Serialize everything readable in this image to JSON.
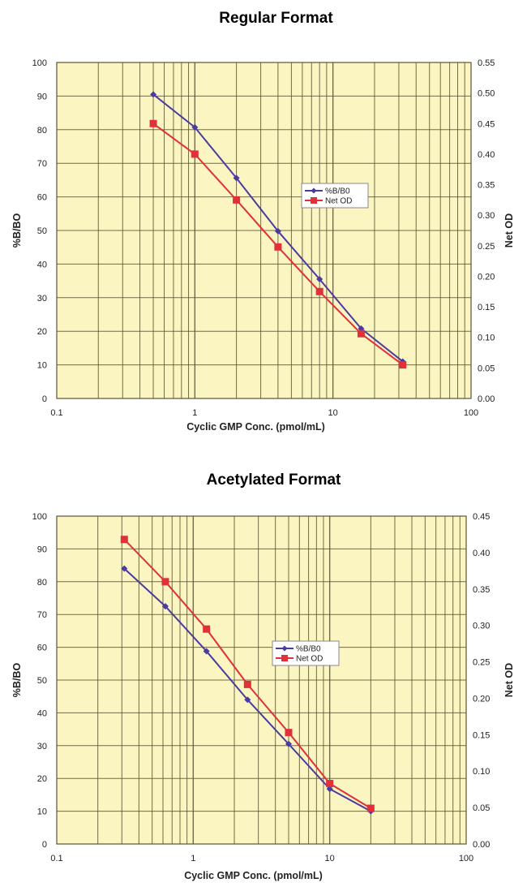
{
  "colors": {
    "plot_bg": "#fbf5c2",
    "grid": "#5a5530",
    "series_b": "#4b3aa0",
    "series_od": "#e0303a"
  },
  "chart_data": [
    {
      "type": "line",
      "title": "Regular Format",
      "xlabel": "Cyclic GMP Conc. (pmol/mL)",
      "ylabel": "%B/BO",
      "y2label": "Net OD",
      "xscale": "log",
      "xlim": [
        0.1,
        100
      ],
      "ylim": [
        0,
        100
      ],
      "y2lim": [
        0,
        0.55
      ],
      "xticks": [
        "0.1",
        "1",
        "10",
        "100"
      ],
      "yticks": [
        "0",
        "10",
        "20",
        "30",
        "40",
        "50",
        "60",
        "70",
        "80",
        "90",
        "100"
      ],
      "y2ticks": [
        "0.00",
        "0.05",
        "0.10",
        "0.15",
        "0.20",
        "0.25",
        "0.30",
        "0.35",
        "0.40",
        "0.45",
        "0.50",
        "0.55"
      ],
      "grid": true,
      "legend": "center-right",
      "x": [
        0.5,
        1,
        2,
        4,
        8,
        16,
        32
      ],
      "series": [
        {
          "name": "%B/B0",
          "axis": "left",
          "marker": "diamond",
          "values": [
            90.5,
            80.7,
            65.6,
            49.8,
            35.5,
            20.8,
            11.0
          ]
        },
        {
          "name": "Net OD",
          "axis": "right",
          "marker": "square",
          "values": [
            0.45,
            0.4,
            0.325,
            0.248,
            0.175,
            0.106,
            0.055
          ]
        }
      ]
    },
    {
      "type": "line",
      "title": "Acetylated Format",
      "xlabel": "Cyclic GMP Conc. (pmol/mL)",
      "ylabel": "%B/BO",
      "y2label": "Net OD",
      "xscale": "log",
      "xlim": [
        0.1,
        100
      ],
      "ylim": [
        0,
        100
      ],
      "y2lim": [
        0,
        0.45
      ],
      "xticks": [
        "0.1",
        "1",
        "10",
        "100"
      ],
      "yticks": [
        "0",
        "10",
        "20",
        "30",
        "40",
        "50",
        "60",
        "70",
        "80",
        "90",
        "100"
      ],
      "y2ticks": [
        "0.00",
        "0.05",
        "0.10",
        "0.15",
        "0.20",
        "0.25",
        "0.30",
        "0.35",
        "0.40",
        "0.45"
      ],
      "grid": true,
      "legend": "center",
      "x": [
        0.3125,
        0.625,
        1.25,
        2.5,
        5,
        10,
        20
      ],
      "series": [
        {
          "name": "%B/B0",
          "axis": "left",
          "marker": "diamond",
          "values": [
            84.0,
            72.5,
            58.8,
            44.0,
            30.5,
            16.8,
            10.0
          ]
        },
        {
          "name": "Net OD",
          "axis": "right",
          "marker": "square",
          "values": [
            0.418,
            0.36,
            0.295,
            0.219,
            0.153,
            0.083,
            0.049
          ]
        }
      ]
    }
  ]
}
